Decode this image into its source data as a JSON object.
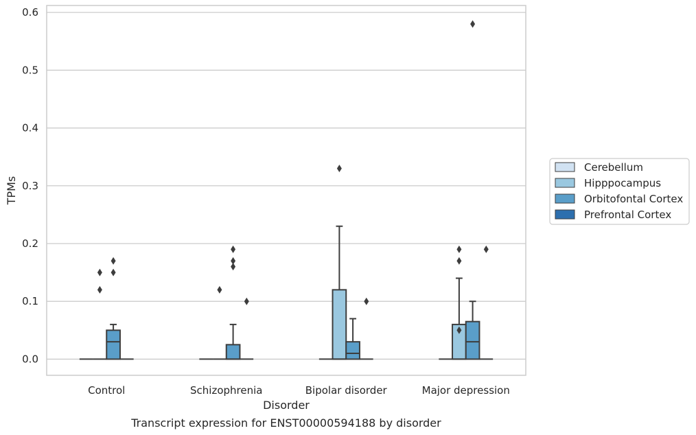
{
  "chart_data": {
    "type": "box",
    "xlabel": "Disorder",
    "ylabel": "TPMs",
    "caption": "Transcript expression for ENST00000594188 by disorder",
    "ylim": [
      -0.028,
      0.612
    ],
    "yticks": [
      "0.0",
      "0.1",
      "0.2",
      "0.3",
      "0.4",
      "0.5",
      "0.6"
    ],
    "grid": true,
    "legend_position": "right",
    "categories": [
      "Control",
      "Schizophrenia",
      "Bipolar disorder",
      "Major depression"
    ],
    "series": [
      {
        "name": "Cerebellum",
        "color": "#d1e2f2",
        "boxes": [
          {
            "q1": 0,
            "median": 0,
            "q3": 0,
            "whisker_low": 0,
            "whisker_high": 0,
            "outliers": []
          },
          {
            "q1": 0,
            "median": 0,
            "q3": 0,
            "whisker_low": 0,
            "whisker_high": 0,
            "outliers": []
          },
          {
            "q1": 0,
            "median": 0,
            "q3": 0,
            "whisker_low": 0,
            "whisker_high": 0,
            "outliers": []
          },
          {
            "q1": 0,
            "median": 0,
            "q3": 0,
            "whisker_low": 0,
            "whisker_high": 0,
            "outliers": []
          }
        ]
      },
      {
        "name": "Hipppocampus",
        "color": "#9ac8e0",
        "boxes": [
          {
            "q1": 0,
            "median": 0,
            "q3": 0,
            "whisker_low": 0,
            "whisker_high": 0,
            "outliers": [
              0.12,
              0.15
            ]
          },
          {
            "q1": 0,
            "median": 0,
            "q3": 0,
            "whisker_low": 0,
            "whisker_high": 0,
            "outliers": [
              0.12
            ]
          },
          {
            "q1": 0,
            "median": 0,
            "q3": 0.12,
            "whisker_low": 0,
            "whisker_high": 0.23,
            "outliers": [
              0.33
            ]
          },
          {
            "q1": 0,
            "median": 0,
            "q3": 0.06,
            "whisker_low": 0,
            "whisker_high": 0.14,
            "outliers": [
              0.05,
              0.17,
              0.19
            ]
          }
        ]
      },
      {
        "name": "Orbitofontal Cortex",
        "color": "#5a9ec9",
        "boxes": [
          {
            "q1": 0,
            "median": 0.03,
            "q3": 0.05,
            "whisker_low": 0,
            "whisker_high": 0.06,
            "outliers": [
              0.15,
              0.17
            ]
          },
          {
            "q1": 0,
            "median": 0,
            "q3": 0.025,
            "whisker_low": 0,
            "whisker_high": 0.06,
            "outliers": [
              0.16,
              0.17,
              0.19
            ]
          },
          {
            "q1": 0,
            "median": 0.01,
            "q3": 0.03,
            "whisker_low": 0,
            "whisker_high": 0.07,
            "outliers": []
          },
          {
            "q1": 0,
            "median": 0.03,
            "q3": 0.065,
            "whisker_low": 0,
            "whisker_high": 0.1,
            "outliers": [
              0.58
            ]
          }
        ]
      },
      {
        "name": "Prefrontal Cortex",
        "color": "#2d6fae",
        "boxes": [
          {
            "q1": 0,
            "median": 0,
            "q3": 0,
            "whisker_low": 0,
            "whisker_high": 0,
            "outliers": []
          },
          {
            "q1": 0,
            "median": 0,
            "q3": 0,
            "whisker_low": 0,
            "whisker_high": 0,
            "outliers": [
              0.1
            ]
          },
          {
            "q1": 0,
            "median": 0,
            "q3": 0,
            "whisker_low": 0,
            "whisker_high": 0,
            "outliers": [
              0.1
            ]
          },
          {
            "q1": 0,
            "median": 0,
            "q3": 0,
            "whisker_low": 0,
            "whisker_high": 0,
            "outliers": [
              0.19
            ]
          }
        ]
      }
    ]
  }
}
